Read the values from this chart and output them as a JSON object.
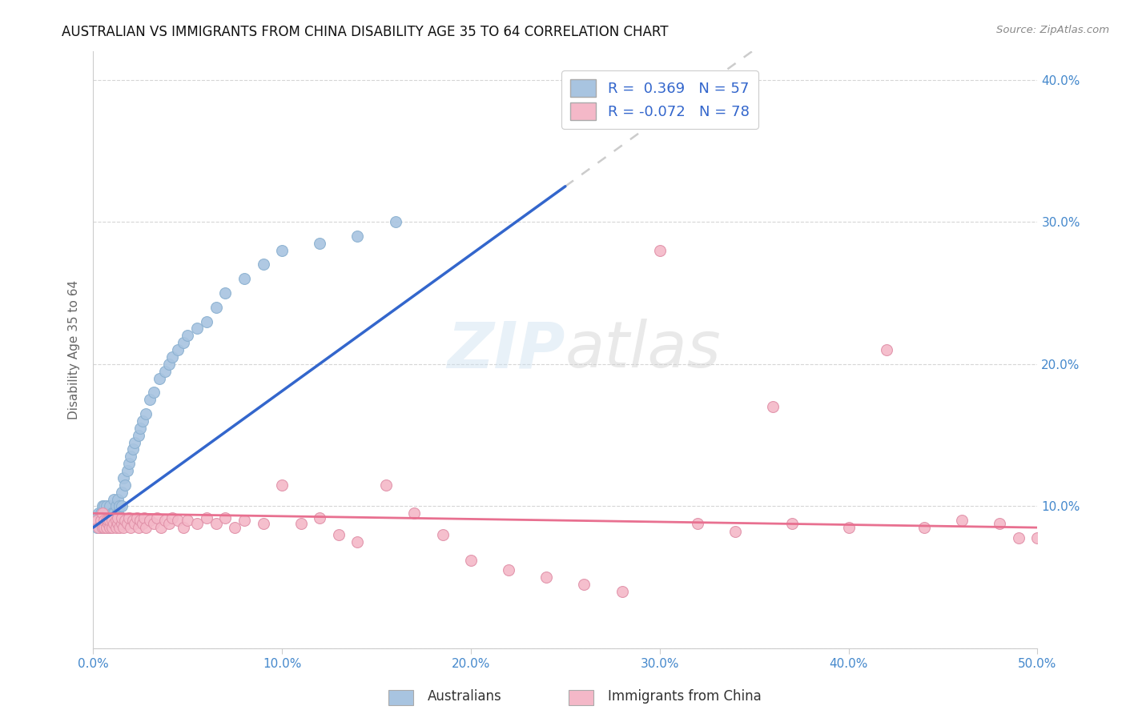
{
  "title": "AUSTRALIAN VS IMMIGRANTS FROM CHINA DISABILITY AGE 35 TO 64 CORRELATION CHART",
  "source": "Source: ZipAtlas.com",
  "ylabel": "Disability Age 35 to 64",
  "xlim": [
    0.0,
    0.5
  ],
  "ylim": [
    0.0,
    0.42
  ],
  "color_australian": "#a8c4e0",
  "color_china": "#f4b8c8",
  "trendline_australian": "#3366cc",
  "trendline_china": "#e87090",
  "tick_color": "#4488cc",
  "legend_label1": "R =  0.369   N = 57",
  "legend_label2": "R = -0.072   N = 78",
  "aus_x": [
    0.002,
    0.003,
    0.004,
    0.004,
    0.005,
    0.005,
    0.005,
    0.006,
    0.006,
    0.007,
    0.007,
    0.008,
    0.008,
    0.009,
    0.009,
    0.01,
    0.01,
    0.011,
    0.011,
    0.012,
    0.012,
    0.013,
    0.013,
    0.014,
    0.015,
    0.015,
    0.016,
    0.017,
    0.018,
    0.019,
    0.02,
    0.021,
    0.022,
    0.024,
    0.025,
    0.026,
    0.028,
    0.03,
    0.032,
    0.035,
    0.038,
    0.04,
    0.042,
    0.045,
    0.048,
    0.05,
    0.055,
    0.06,
    0.065,
    0.07,
    0.08,
    0.09,
    0.1,
    0.12,
    0.14,
    0.16,
    0.26
  ],
  "aus_y": [
    0.085,
    0.095,
    0.085,
    0.095,
    0.085,
    0.09,
    0.1,
    0.085,
    0.1,
    0.09,
    0.1,
    0.085,
    0.095,
    0.09,
    0.1,
    0.09,
    0.095,
    0.095,
    0.105,
    0.09,
    0.1,
    0.095,
    0.105,
    0.1,
    0.11,
    0.1,
    0.12,
    0.115,
    0.125,
    0.13,
    0.135,
    0.14,
    0.145,
    0.15,
    0.155,
    0.16,
    0.165,
    0.175,
    0.18,
    0.19,
    0.195,
    0.2,
    0.205,
    0.21,
    0.215,
    0.22,
    0.225,
    0.23,
    0.24,
    0.25,
    0.26,
    0.27,
    0.28,
    0.285,
    0.29,
    0.3,
    0.38
  ],
  "china_x": [
    0.002,
    0.003,
    0.004,
    0.005,
    0.005,
    0.006,
    0.006,
    0.007,
    0.007,
    0.008,
    0.008,
    0.009,
    0.009,
    0.01,
    0.01,
    0.011,
    0.012,
    0.012,
    0.013,
    0.013,
    0.014,
    0.015,
    0.015,
    0.016,
    0.017,
    0.018,
    0.019,
    0.02,
    0.021,
    0.022,
    0.023,
    0.024,
    0.025,
    0.026,
    0.027,
    0.028,
    0.03,
    0.032,
    0.034,
    0.036,
    0.038,
    0.04,
    0.042,
    0.045,
    0.048,
    0.05,
    0.055,
    0.06,
    0.065,
    0.07,
    0.075,
    0.08,
    0.09,
    0.1,
    0.11,
    0.12,
    0.13,
    0.14,
    0.155,
    0.17,
    0.185,
    0.2,
    0.22,
    0.24,
    0.26,
    0.28,
    0.3,
    0.32,
    0.34,
    0.36,
    0.37,
    0.4,
    0.42,
    0.44,
    0.46,
    0.48,
    0.49,
    0.5
  ],
  "china_y": [
    0.09,
    0.085,
    0.09,
    0.085,
    0.095,
    0.085,
    0.09,
    0.085,
    0.09,
    0.088,
    0.09,
    0.085,
    0.09,
    0.085,
    0.09,
    0.088,
    0.085,
    0.09,
    0.088,
    0.092,
    0.085,
    0.088,
    0.092,
    0.085,
    0.09,
    0.088,
    0.092,
    0.085,
    0.09,
    0.088,
    0.092,
    0.085,
    0.09,
    0.088,
    0.092,
    0.085,
    0.09,
    0.088,
    0.092,
    0.085,
    0.09,
    0.088,
    0.092,
    0.09,
    0.085,
    0.09,
    0.088,
    0.092,
    0.088,
    0.092,
    0.085,
    0.09,
    0.088,
    0.115,
    0.088,
    0.092,
    0.08,
    0.075,
    0.115,
    0.095,
    0.08,
    0.062,
    0.055,
    0.05,
    0.045,
    0.04,
    0.28,
    0.088,
    0.082,
    0.17,
    0.088,
    0.085,
    0.21,
    0.085,
    0.09,
    0.088,
    0.078,
    0.078
  ]
}
